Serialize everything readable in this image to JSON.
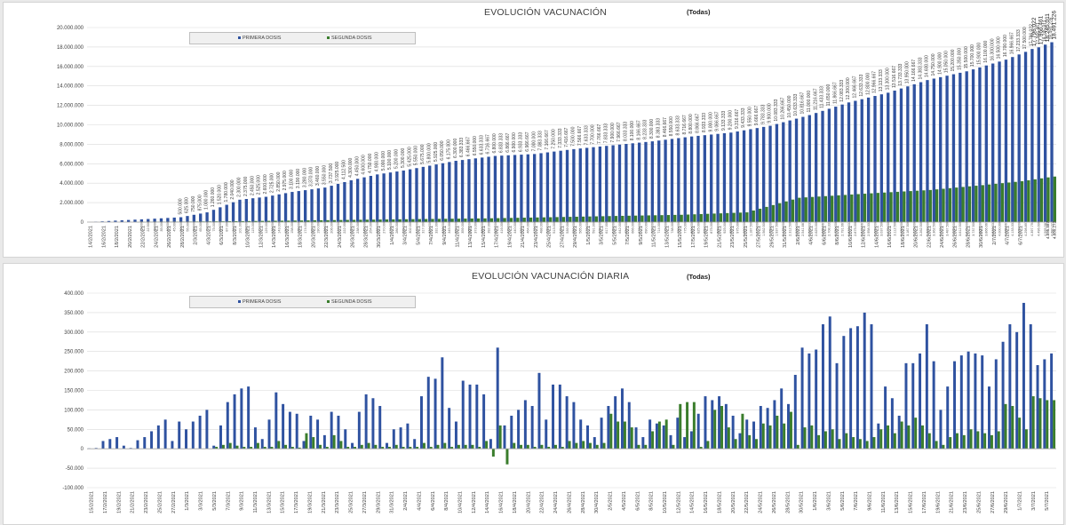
{
  "chart_data": [
    {
      "type": "bar",
      "title": "EVOLUCIÓN VACUNACIÓN",
      "filter_label": "(Todas)",
      "legend": [
        "PRIMERA DOSIS",
        "SEGUNDA DOSIS"
      ],
      "colors": {
        "primera": "#2f52a0",
        "segunda": "#3a7d2c"
      },
      "ylim": [
        0,
        20000000
      ],
      "yticks": [
        "0",
        "2.000.000",
        "4.000.000",
        "6.000.000",
        "8.000.000",
        "10.000.000",
        "12.000.000",
        "14.000.000",
        "16.000.000",
        "18.000.000",
        "20.000.000"
      ],
      "xtick_labels": [
        "14/2/2021",
        "16/2/2021",
        "18/2/2021",
        "20/2/2021",
        "22/2/2021",
        "24/2/2021",
        "26/2/2021",
        "28/2/2021",
        "2/3/2021",
        "4/3/2021",
        "6/3/2021",
        "8/3/2021",
        "10/3/2021",
        "12/3/2021",
        "14/3/2021",
        "16/3/2021",
        "18/3/2021",
        "20/3/2021",
        "22/3/2021",
        "24/3/2021",
        "26/3/2021",
        "28/3/2021",
        "30/3/2021",
        "1/4/2021",
        "3/4/2021",
        "5/4/2021",
        "7/4/2021",
        "9/4/2021",
        "11/4/2021",
        "13/4/2021",
        "15/4/2021",
        "17/4/2021",
        "19/4/2021",
        "21/4/2021",
        "23/4/2021",
        "25/4/2021",
        "27/4/2021",
        "29/4/2021",
        "1/5/2021",
        "3/5/2021",
        "5/5/2021",
        "7/5/2021",
        "9/5/2021",
        "11/5/2021",
        "13/5/2021",
        "15/5/2021",
        "17/5/2021",
        "19/5/2021",
        "21/5/2021",
        "23/5/2021",
        "25/5/2021",
        "27/5/2021",
        "29/5/2021",
        "31/5/2021",
        "2/6/2021",
        "4/6/2021",
        "6/6/2021",
        "8/6/2021",
        "10/6/2021",
        "12/6/2021",
        "14/6/2021",
        "16/6/2021",
        "18/6/2021",
        "20/6/2021",
        "22/6/2021",
        "24/6/2021",
        "26/6/2021",
        "28/6/2021",
        "30/6/2021",
        "2/7/2021",
        "4/7/2021",
        "6/7/2021"
      ],
      "top_labels": [
        "18.491.226",
        "18.245.011",
        "17.966.461",
        "17.796.022"
      ],
      "bottom_labels": [
        "4.680.272",
        "4.595.587"
      ],
      "cum_primera_knots": [
        [
          0,
          0
        ],
        [
          4,
          150000
        ],
        [
          10,
          350000
        ],
        [
          14,
          500000
        ],
        [
          18,
          1000000
        ],
        [
          23,
          2300000
        ],
        [
          27,
          2600000
        ],
        [
          31,
          3100000
        ],
        [
          36,
          3550000
        ],
        [
          40,
          4300000
        ],
        [
          44,
          4900000
        ],
        [
          48,
          5300000
        ],
        [
          52,
          5800000
        ],
        [
          56,
          6300000
        ],
        [
          62,
          6800000
        ],
        [
          68,
          7000000
        ],
        [
          74,
          7500000
        ],
        [
          80,
          7900000
        ],
        [
          86,
          8300000
        ],
        [
          92,
          8800000
        ],
        [
          98,
          9200000
        ],
        [
          104,
          9900000
        ],
        [
          110,
          11000000
        ],
        [
          116,
          12300000
        ],
        [
          122,
          13300000
        ],
        [
          128,
          14600000
        ],
        [
          134,
          15500000
        ],
        [
          140,
          16700000
        ],
        [
          143,
          17500000
        ],
        [
          144,
          17796022
        ],
        [
          145,
          17966461
        ],
        [
          146,
          18245011
        ],
        [
          147,
          18491226
        ]
      ],
      "cum_segunda_knots": [
        [
          0,
          0
        ],
        [
          6,
          0
        ],
        [
          10,
          30000
        ],
        [
          20,
          80000
        ],
        [
          30,
          150000
        ],
        [
          40,
          230000
        ],
        [
          50,
          310000
        ],
        [
          60,
          380000
        ],
        [
          70,
          500000
        ],
        [
          80,
          630000
        ],
        [
          90,
          750000
        ],
        [
          100,
          1000000
        ],
        [
          108,
          2500000
        ],
        [
          120,
          3000000
        ],
        [
          128,
          3300000
        ],
        [
          136,
          3800000
        ],
        [
          142,
          4200000
        ],
        [
          146,
          4595587
        ],
        [
          147,
          4680272
        ]
      ]
    },
    {
      "type": "bar",
      "title": "EVOLUCIÓN VACUNACIÓN DIARIA",
      "filter_label": "(Todas)",
      "legend": [
        "PRIMERA DOSIS",
        "SEGUNDA DOSIS"
      ],
      "colors": {
        "primera": "#2f52a0",
        "segunda": "#3a7d2c"
      },
      "ylim": [
        -100000,
        400000
      ],
      "yticks": [
        "-100.000",
        "-50.000",
        "0",
        "50.000",
        "100.000",
        "150.000",
        "200.000",
        "250.000",
        "300.000",
        "350.000",
        "400.000"
      ],
      "xtick_labels": [
        "15/2/2021",
        "17/2/2021",
        "19/2/2021",
        "21/2/2021",
        "23/2/2021",
        "25/2/2021",
        "27/2/2021",
        "1/3/2021",
        "3/3/2021",
        "5/3/2021",
        "7/3/2021",
        "9/3/2021",
        "11/3/2021",
        "13/3/2021",
        "15/3/2021",
        "17/3/2021",
        "19/3/2021",
        "21/3/2021",
        "23/3/2021",
        "25/3/2021",
        "27/3/2021",
        "29/3/2021",
        "31/3/2021",
        "2/4/2021",
        "4/4/2021",
        "6/4/2021",
        "8/4/2021",
        "10/4/2021",
        "12/4/2021",
        "14/4/2021",
        "16/4/2021",
        "18/4/2021",
        "20/4/2021",
        "22/4/2021",
        "24/4/2021",
        "26/4/2021",
        "28/4/2021",
        "30/4/2021",
        "2/5/2021",
        "4/5/2021",
        "6/5/2021",
        "8/5/2021",
        "10/5/2021",
        "12/5/2021",
        "14/5/2021",
        "16/5/2021",
        "18/5/2021",
        "20/5/2021",
        "22/5/2021",
        "24/5/2021",
        "26/5/2021",
        "28/5/2021",
        "30/5/2021",
        "1/6/2021",
        "3/6/2021",
        "5/6/2021",
        "7/6/2021",
        "9/6/2021",
        "11/6/2021",
        "13/6/2021",
        "15/6/2021",
        "17/6/2021",
        "19/6/2021",
        "21/6/2021",
        "23/6/2021",
        "25/6/2021",
        "27/6/2021",
        "29/6/2021",
        "1/7/2021",
        "3/7/2021",
        "5/7/2021"
      ],
      "series": [
        {
          "name": "PRIMERA DOSIS",
          "values": [
            1000,
            2000,
            20000,
            25000,
            30000,
            8000,
            2000,
            22000,
            30000,
            45000,
            60000,
            75000,
            20000,
            70000,
            50000,
            70000,
            85000,
            100000,
            8000,
            60000,
            120000,
            140000,
            155000,
            160000,
            55000,
            25000,
            75000,
            145000,
            115000,
            95000,
            90000,
            20000,
            85000,
            75000,
            35000,
            95000,
            85000,
            50000,
            15000,
            95000,
            140000,
            130000,
            110000,
            15000,
            50000,
            55000,
            65000,
            25000,
            135000,
            185000,
            180000,
            235000,
            105000,
            70000,
            175000,
            165000,
            165000,
            140000,
            25000,
            260000,
            60000,
            85000,
            100000,
            125000,
            110000,
            195000,
            75000,
            165000,
            165000,
            135000,
            120000,
            75000,
            60000,
            30000,
            80000,
            110000,
            135000,
            155000,
            120000,
            55000,
            30000,
            75000,
            65000,
            60000,
            35000,
            80000,
            30000,
            45000,
            90000,
            135000,
            125000,
            135000,
            115000,
            85000,
            40000,
            75000,
            70000,
            110000,
            105000,
            125000,
            155000,
            115000,
            190000,
            260000,
            245000,
            255000,
            320000,
            340000,
            220000,
            290000,
            310000,
            315000,
            350000,
            320000,
            65000,
            160000,
            130000,
            85000,
            220000,
            220000,
            245000,
            320000,
            225000,
            100000,
            160000,
            225000,
            240000,
            250000,
            245000,
            240000,
            160000,
            230000,
            275000,
            320000,
            300000,
            375000,
            320000,
            215000,
            230000,
            245000
          ]
        },
        {
          "name": "SEGUNDA DOSIS",
          "values": [
            0,
            0,
            0,
            0,
            0,
            0,
            0,
            0,
            0,
            0,
            0,
            0,
            0,
            0,
            0,
            0,
            0,
            0,
            5000,
            10000,
            15000,
            8000,
            5000,
            5000,
            15000,
            5000,
            5000,
            20000,
            10000,
            5000,
            3000,
            40000,
            30000,
            10000,
            5000,
            35000,
            20000,
            5000,
            5000,
            10000,
            15000,
            10000,
            5000,
            5000,
            10000,
            5000,
            5000,
            5000,
            15000,
            5000,
            10000,
            15000,
            5000,
            10000,
            10000,
            10000,
            5000,
            20000,
            -20000,
            60000,
            -40000,
            15000,
            10000,
            10000,
            5000,
            10000,
            5000,
            10000,
            5000,
            20000,
            15000,
            20000,
            15000,
            10000,
            15000,
            90000,
            70000,
            70000,
            55000,
            10000,
            10000,
            45000,
            70000,
            75000,
            10000,
            115000,
            120000,
            120000,
            5000,
            20000,
            100000,
            110000,
            55000,
            25000,
            90000,
            35000,
            25000,
            65000,
            60000,
            85000,
            65000,
            95000,
            10000,
            55000,
            60000,
            35000,
            45000,
            50000,
            25000,
            40000,
            30000,
            25000,
            20000,
            30000,
            50000,
            60000,
            40000,
            70000,
            60000,
            80000,
            60000,
            40000,
            20000,
            10000,
            30000,
            40000,
            35000,
            50000,
            45000,
            40000,
            35000,
            45000,
            115000,
            110000,
            80000,
            50000,
            135000,
            130000,
            125000,
            125000
          ]
        }
      ]
    }
  ]
}
